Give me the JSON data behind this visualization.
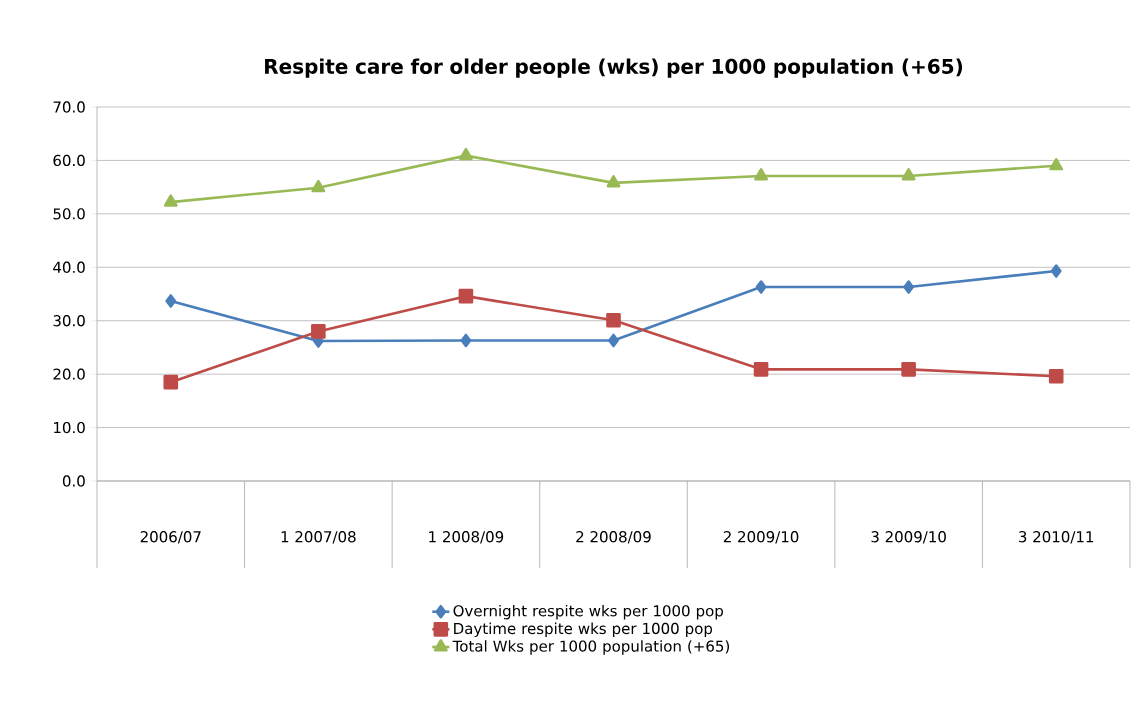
{
  "chart_data": {
    "type": "line",
    "title": "Respite care for older people (wks) per 1000 population (+65)",
    "categories": [
      "2006/07",
      "1 2007/08",
      "1 2008/09",
      "2 2008/09",
      "2 2009/10",
      "3 2009/10",
      "3 2010/11"
    ],
    "series": [
      {
        "name": "Overnight respite wks per 1000 pop",
        "color": "#4a7ebb",
        "marker": "diamond",
        "values": [
          33.7,
          26.2,
          26.3,
          26.3,
          36.3,
          36.3,
          39.3
        ]
      },
      {
        "name": "Daytime respite wks per 1000 pop",
        "color": "#be4b48",
        "marker": "square",
        "values": [
          18.5,
          28.0,
          34.6,
          30.1,
          20.9,
          20.9,
          19.6
        ]
      },
      {
        "name": "Total Wks per 1000 population (+65)",
        "color": "#98b954",
        "marker": "triangle",
        "values": [
          52.2,
          54.9,
          60.9,
          55.8,
          57.1,
          57.1,
          59.0
        ]
      }
    ],
    "ylim": [
      0,
      70
    ],
    "yticks": [
      {
        "value": 0,
        "label": "0.0"
      },
      {
        "value": 10,
        "label": "10.0"
      },
      {
        "value": 20,
        "label": "20.0"
      },
      {
        "value": 30,
        "label": "30.0"
      },
      {
        "value": 40,
        "label": "40.0"
      },
      {
        "value": 50,
        "label": "50.0"
      },
      {
        "value": 60,
        "label": "60.0"
      },
      {
        "value": 70,
        "label": "70.0"
      }
    ],
    "grid": "y",
    "legend": "bottom",
    "line_style": "solid"
  }
}
